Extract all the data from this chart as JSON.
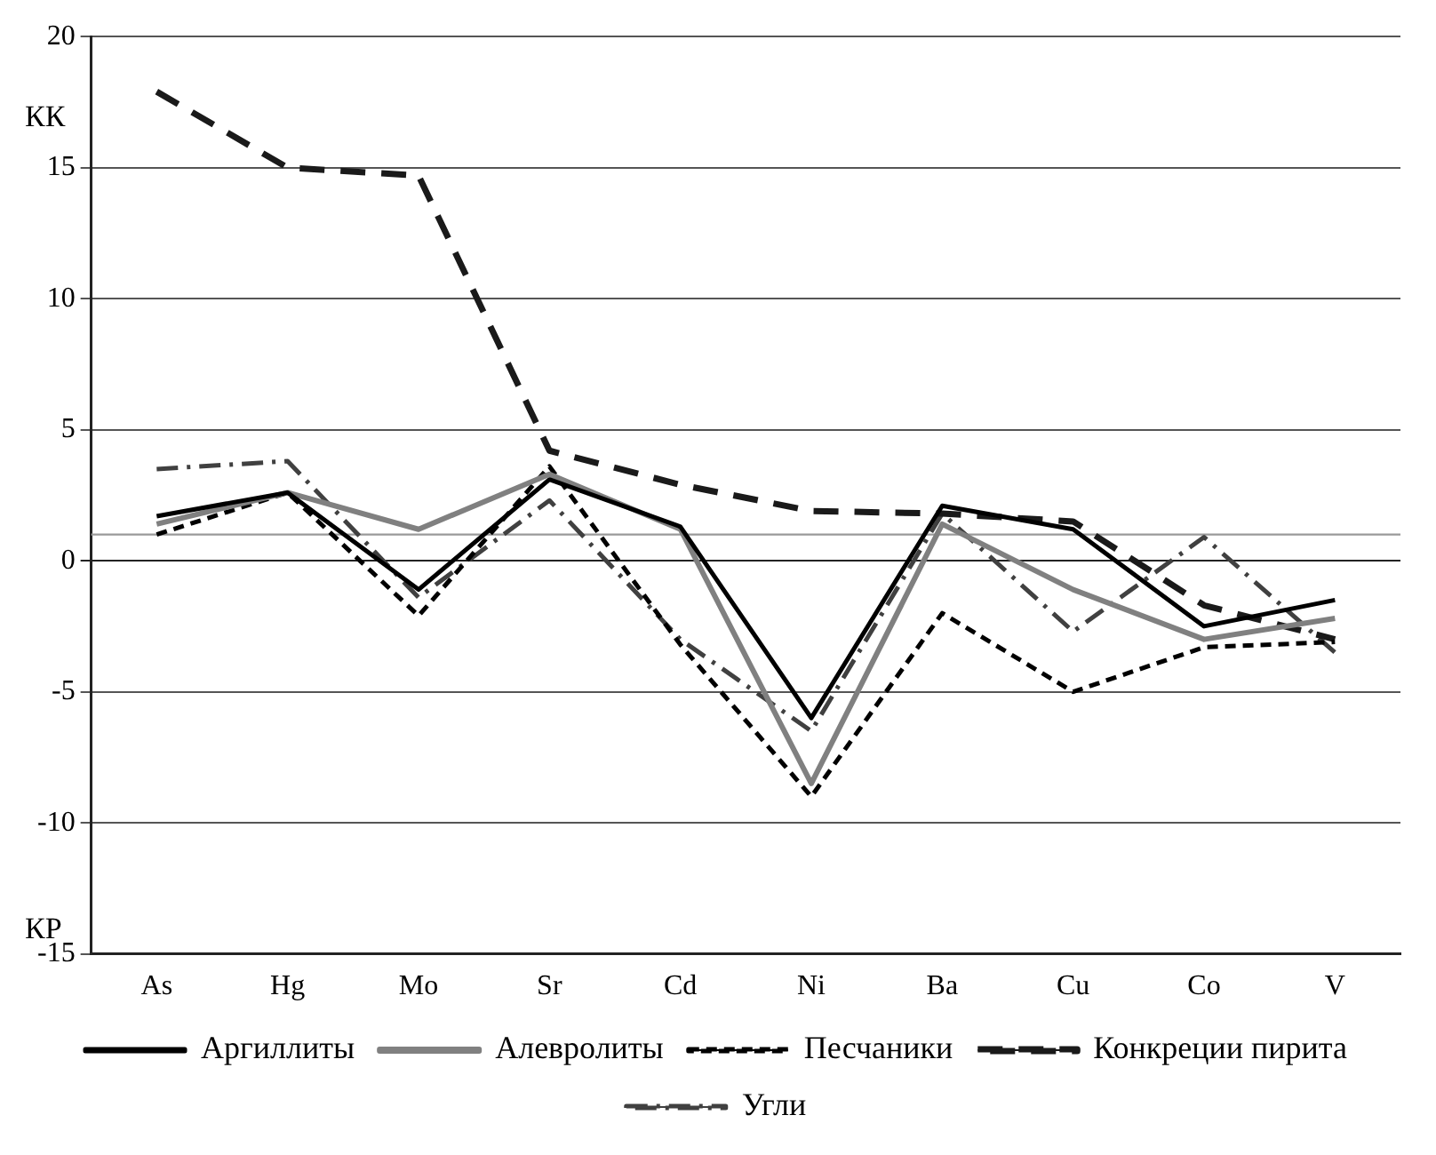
{
  "chart_data": {
    "type": "line",
    "categories": [
      "As",
      "Hg",
      "Mo",
      "Sr",
      "Cd",
      "Ni",
      "Ba",
      "Cu",
      "Co",
      "V"
    ],
    "series": [
      {
        "name": "Аргиллиты",
        "color": "#000000",
        "line_style": "solid",
        "values": [
          1.7,
          2.6,
          -1.1,
          3.1,
          1.3,
          -6.0,
          2.1,
          1.2,
          -2.5,
          -1.5
        ]
      },
      {
        "name": "Алевролиты",
        "color": "#808080",
        "line_style": "solid",
        "values": [
          1.4,
          2.6,
          1.2,
          3.3,
          1.2,
          -8.5,
          1.4,
          -1.1,
          -3.0,
          -2.2
        ]
      },
      {
        "name": "Песчаники",
        "color": "#000000",
        "line_style": "dashed",
        "values": [
          1.0,
          2.6,
          -2.1,
          3.6,
          -3.2,
          -9.0,
          -2.0,
          -5.0,
          -3.3,
          -3.1
        ]
      },
      {
        "name": "Конкреции пирита",
        "color": "#1a1a1a",
        "line_style": "dashed",
        "values": [
          17.9,
          15.0,
          14.7,
          4.2,
          2.9,
          1.9,
          1.8,
          1.5,
          -1.7,
          -3.0
        ]
      },
      {
        "name": "Угли",
        "color": "#404040",
        "line_style": "dashdot",
        "values": [
          3.5,
          3.8,
          -1.4,
          2.3,
          -3.0,
          -6.5,
          1.8,
          -2.7,
          0.9,
          -3.5
        ]
      }
    ],
    "ylim": [
      -15,
      20
    ],
    "yticks": [
      -15,
      -10,
      -5,
      0,
      5,
      10,
      15,
      20
    ],
    "grid": "y",
    "legend": "bottom",
    "marker": "none",
    "ref_lines": [
      {
        "axis": "y",
        "value": 1,
        "color": "#999999"
      }
    ],
    "annotations": [
      "КК",
      "КР"
    ]
  }
}
